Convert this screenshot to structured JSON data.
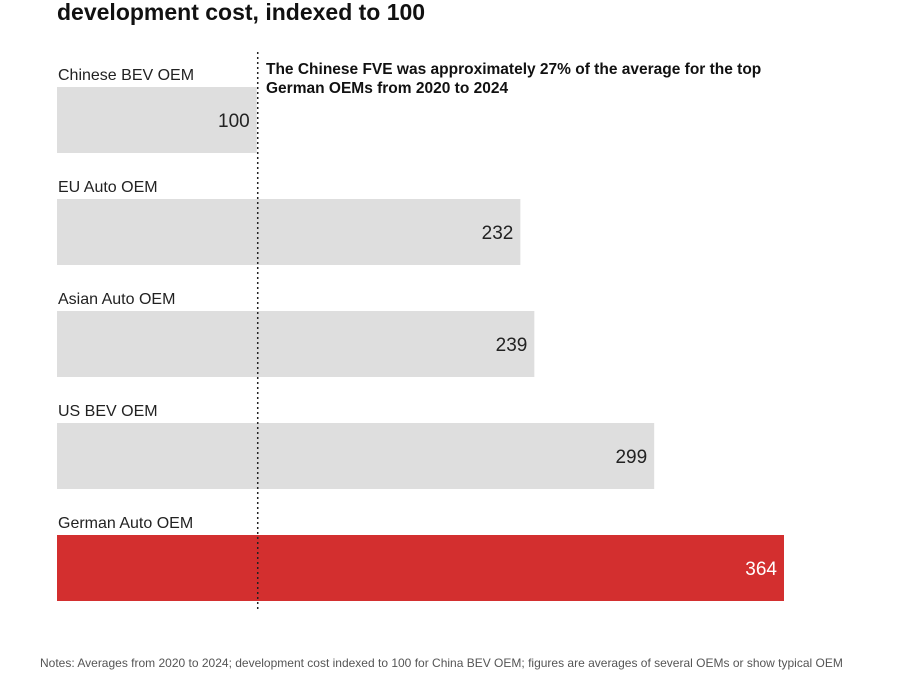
{
  "chart_data": {
    "type": "bar",
    "orientation": "horizontal",
    "title": "development cost, indexed to 100",
    "categories": [
      "Chinese BEV OEM",
      "EU Auto OEM",
      "Asian Auto OEM",
      "US BEV OEM",
      "German Auto OEM"
    ],
    "values": [
      100,
      232,
      239,
      299,
      364
    ],
    "value_labels": [
      "100",
      "232",
      "239",
      "299",
      "364"
    ],
    "highlight_category": "German Auto OEM",
    "reference_line": {
      "value": 100,
      "style": "dotted"
    },
    "annotation": "The Chinese FVE was approximately 27% of the average for the top German OEMs from 2020 to 2024",
    "notes": "Notes: Averages from 2020 to 2024; development cost indexed to 100 for China BEV OEM; figures are averages of several OEMs or show typical OEM",
    "xlabel": "",
    "ylabel": "",
    "xlim": [
      0,
      364
    ],
    "grid": false,
    "colors": {
      "bar": "#dedede",
      "highlight": "#d32f2f",
      "reference_line": "#222222"
    }
  }
}
